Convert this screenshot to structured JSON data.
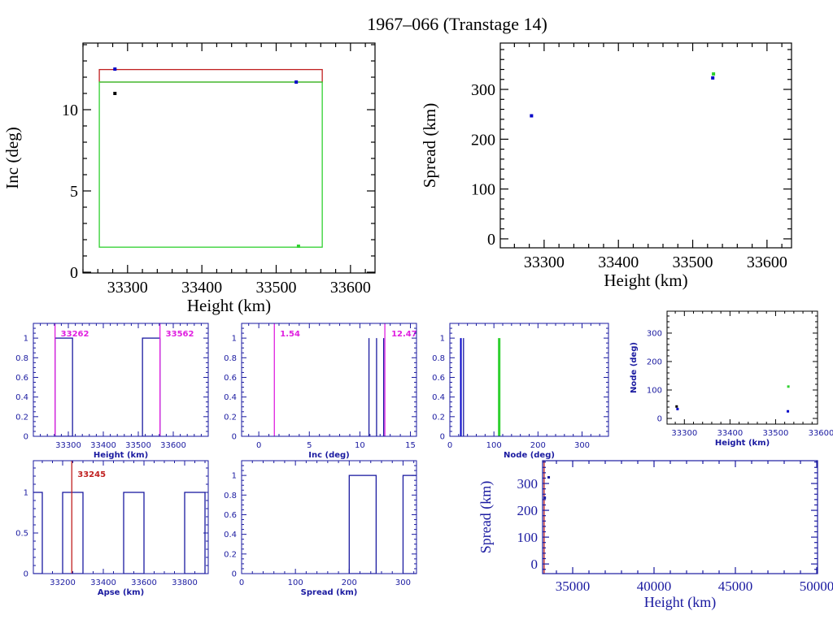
{
  "title": "1967–066 (Transtage 14)",
  "colors": {
    "black": "#000000",
    "navy": "#1a1aa0",
    "blue": "#0000c8",
    "green": "#30d030",
    "red": "#c02020",
    "magenta": "#e020e0"
  },
  "chart_data": [
    {
      "id": "inc-vs-height",
      "type": "scatter",
      "xlabel": "Height (km)",
      "ylabel": "Inc (deg)",
      "xlim": [
        33240,
        33633
      ],
      "ylim": [
        -0.05,
        14.1
      ],
      "xticks": [
        33300,
        33400,
        33500,
        33600
      ],
      "xminor": 20,
      "yticks": [
        0,
        5,
        10
      ],
      "yminor": 1,
      "style": "large",
      "axis_color": "black",
      "boxes": [
        {
          "x": [
            33262,
            33562
          ],
          "y": [
            11.7,
            12.47
          ],
          "color": "red"
        },
        {
          "x": [
            33262,
            33562
          ],
          "y": [
            1.54,
            11.7
          ],
          "color": "green"
        }
      ],
      "points": [
        {
          "x": 33283,
          "y": 12.5,
          "color": "blue"
        },
        {
          "x": 33527,
          "y": 11.7,
          "color": "blue"
        },
        {
          "x": 33283,
          "y": 11.0,
          "color": "black"
        },
        {
          "x": 33530,
          "y": 1.6,
          "color": "green"
        }
      ]
    },
    {
      "id": "spread-vs-height",
      "type": "scatter",
      "xlabel": "Height (km)",
      "ylabel": "Spread (km)",
      "xlim": [
        33241,
        33633
      ],
      "ylim": [
        -18,
        393
      ],
      "xticks": [
        33300,
        33400,
        33500,
        33600
      ],
      "xminor": 20,
      "yticks": [
        0,
        100,
        200,
        300
      ],
      "yminor": 20,
      "style": "large",
      "axis_color": "black",
      "points": [
        {
          "x": 33283,
          "y": 247,
          "color": "blue"
        },
        {
          "x": 33527,
          "y": 323,
          "color": "blue"
        },
        {
          "x": 33528,
          "y": 331,
          "color": "green"
        }
      ]
    },
    {
      "id": "height-histogram",
      "type": "bar",
      "xlabel": "Height (km)",
      "ylabel": "",
      "xlim": [
        33200,
        33700
      ],
      "ylim": [
        0,
        1.15
      ],
      "xticks": [
        33300,
        33400,
        33500,
        33600
      ],
      "xminor": 20,
      "yticks": [
        0,
        0.2,
        0.4,
        0.6,
        0.8,
        1
      ],
      "yminor": 0.05,
      "style": "small",
      "axis_color": "navy",
      "bars": [
        {
          "x": [
            33262,
            33312
          ],
          "value": 1
        },
        {
          "x": [
            33512,
            33562
          ],
          "value": 1
        }
      ],
      "vlines": [
        {
          "x": 33262,
          "color": "magenta",
          "label": "33262"
        },
        {
          "x": 33562,
          "color": "magenta",
          "label": "33562"
        }
      ]
    },
    {
      "id": "inc-histogram",
      "type": "bar",
      "xlabel": "Inc (deg)",
      "ylabel": "",
      "xlim": [
        -1.7,
        15.6
      ],
      "ylim": [
        0,
        1.15
      ],
      "xticks": [
        0,
        5,
        10,
        15
      ],
      "xminor": 1,
      "yticks": [
        0,
        0.2,
        0.4,
        0.6,
        0.8,
        1
      ],
      "yminor": 0.05,
      "style": "small",
      "axis_color": "navy",
      "spikes": [
        {
          "x": 10.9,
          "value": 1,
          "color": "navy"
        },
        {
          "x": 11.65,
          "value": 1,
          "color": "navy"
        },
        {
          "x": 12.35,
          "value": 1,
          "color": "navy"
        }
      ],
      "vlines": [
        {
          "x": 1.54,
          "color": "magenta",
          "label": "1.54"
        },
        {
          "x": 12.47,
          "color": "magenta",
          "label": "12.47"
        }
      ]
    },
    {
      "id": "node-histogram",
      "type": "bar",
      "xlabel": "Node (deg)",
      "ylabel": "",
      "xlim": [
        0,
        360
      ],
      "ylim": [
        0,
        1.15
      ],
      "xticks": [
        0,
        100,
        200,
        300
      ],
      "xminor": 20,
      "yticks": [
        0,
        0.2,
        0.4,
        0.6,
        0.8,
        1
      ],
      "yminor": 0.05,
      "style": "small",
      "axis_color": "navy",
      "spikes": [
        {
          "x": 25,
          "value": 1,
          "color": "blue",
          "width": 2
        },
        {
          "x": 31,
          "value": 1,
          "color": "navy"
        },
        {
          "x": 112,
          "value": 1,
          "color": "green",
          "width": 3
        }
      ]
    },
    {
      "id": "node-vs-height",
      "type": "scatter",
      "xlabel": "Height (km)",
      "ylabel": "Node (deg)",
      "xlim": [
        33262,
        33592
      ],
      "ylim": [
        -20,
        377
      ],
      "xticks": [
        33300,
        33400,
        33500,
        33600
      ],
      "xminor": 20,
      "yticks": [
        0,
        100,
        200,
        300
      ],
      "yminor": 20,
      "style": "small",
      "axis_color": "black",
      "points": [
        {
          "x": 33283,
          "y": 42,
          "color": "black"
        },
        {
          "x": 33285,
          "y": 33,
          "color": "blue"
        },
        {
          "x": 33527,
          "y": 25,
          "color": "blue"
        },
        {
          "x": 33528,
          "y": 112,
          "color": "green"
        }
      ]
    },
    {
      "id": "apse-histogram",
      "type": "bar",
      "xlabel": "Apse (km)",
      "ylabel": "",
      "xlim": [
        33056,
        33916
      ],
      "ylim": [
        0,
        1.39
      ],
      "xticks": [
        33200,
        33400,
        33600,
        33800
      ],
      "xminor": 50,
      "yticks": [
        0,
        0.5,
        1
      ],
      "yminor": 0.1,
      "style": "small",
      "axis_color": "navy",
      "bars": [
        {
          "x": [
            33050,
            33100
          ],
          "value": 1
        },
        {
          "x": [
            33200,
            33300
          ],
          "value": 1
        },
        {
          "x": [
            33500,
            33600
          ],
          "value": 1
        },
        {
          "x": [
            33800,
            33900
          ],
          "value": 1
        }
      ],
      "vlines": [
        {
          "x": 33245,
          "color": "red",
          "label": "33245"
        }
      ]
    },
    {
      "id": "spread-histogram",
      "type": "bar",
      "xlabel": "Spread (km)",
      "ylabel": "",
      "xlim": [
        0,
        325
      ],
      "ylim": [
        0,
        1.15
      ],
      "xticks": [
        0,
        100,
        200,
        300
      ],
      "xminor": 20,
      "yticks": [
        0,
        0.2,
        0.4,
        0.6,
        0.8,
        1
      ],
      "yminor": 0.05,
      "style": "small",
      "axis_color": "navy",
      "bars": [
        {
          "x": [
            200,
            250
          ],
          "value": 1
        },
        {
          "x": [
            300,
            350
          ],
          "value": 1
        }
      ]
    },
    {
      "id": "spread-vs-height-wide",
      "type": "scatter",
      "xlabel": "Height (km)",
      "ylabel": "Spread (km)",
      "xlim": [
        33150,
        50050
      ],
      "ylim": [
        -36,
        385
      ],
      "xticks": [
        35000,
        40000,
        45000,
        50000
      ],
      "xminor": 1000,
      "yticks": [
        0,
        100,
        200,
        300
      ],
      "yminor": 20,
      "style": "medium",
      "axis_color": "navy",
      "vlines": [
        {
          "x": 33245,
          "color": "red",
          "label": ""
        }
      ],
      "points": [
        {
          "x": 33283,
          "y": 247,
          "color": "navy"
        },
        {
          "x": 33527,
          "y": 323,
          "color": "navy"
        }
      ]
    }
  ]
}
